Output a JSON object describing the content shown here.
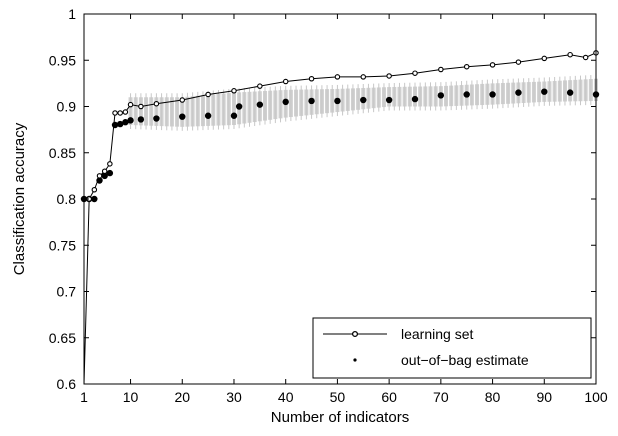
{
  "chart_data": {
    "type": "line",
    "title": "",
    "xlabel": "Number of indicators",
    "ylabel": "Classification accuracy",
    "xlim": [
      1,
      100
    ],
    "ylim": [
      0.6,
      1
    ],
    "xticks": [
      1,
      10,
      20,
      30,
      40,
      50,
      60,
      70,
      80,
      90,
      100
    ],
    "yticks": [
      0.6,
      0.65,
      0.7,
      0.75,
      0.8,
      0.85,
      0.9,
      0.95,
      1
    ],
    "grid": false,
    "legend_position": "bottom-right",
    "legend": [
      "learning set",
      "out−of−bag estimate"
    ],
    "colors": {
      "learning": "#000000",
      "oob": "#000000",
      "boxes": "#c8c8c8"
    },
    "series": [
      {
        "name": "learning set",
        "marker": "small-open-circle-line",
        "x": [
          1,
          2,
          3,
          4,
          5,
          6,
          7,
          8,
          9,
          10,
          12,
          15,
          20,
          25,
          30,
          35,
          40,
          45,
          50,
          55,
          60,
          65,
          70,
          75,
          80,
          85,
          90,
          95,
          98,
          100
        ],
        "values": [
          0.6,
          0.8,
          0.81,
          0.825,
          0.83,
          0.838,
          0.893,
          0.893,
          0.894,
          0.902,
          0.9,
          0.903,
          0.907,
          0.913,
          0.917,
          0.922,
          0.927,
          0.93,
          0.932,
          0.932,
          0.933,
          0.936,
          0.94,
          0.943,
          0.945,
          0.948,
          0.952,
          0.956,
          0.953,
          0.958
        ]
      },
      {
        "name": "out−of−bag estimate",
        "marker": "filled-dot",
        "x": [
          1,
          2,
          3,
          4,
          5,
          6,
          7,
          8,
          9,
          10,
          12,
          15,
          20,
          25,
          30,
          31,
          35,
          40,
          45,
          50,
          55,
          60,
          65,
          70,
          75,
          80,
          85,
          90,
          95,
          100
        ],
        "values": [
          0.8,
          0.8,
          0.8,
          0.82,
          0.825,
          0.828,
          0.88,
          0.881,
          0.883,
          0.885,
          0.886,
          0.887,
          0.889,
          0.89,
          0.89,
          0.9,
          0.902,
          0.905,
          0.906,
          0.906,
          0.907,
          0.907,
          0.908,
          0.912,
          0.913,
          0.913,
          0.915,
          0.916,
          0.915,
          0.913
        ]
      }
    ],
    "spread_bands": {
      "x": [
        10,
        20,
        30,
        40,
        50,
        60,
        70,
        80,
        90,
        100
      ],
      "low": [
        0.88,
        0.878,
        0.88,
        0.888,
        0.894,
        0.9,
        0.9,
        0.902,
        0.905,
        0.906
      ],
      "high": [
        0.91,
        0.91,
        0.915,
        0.918,
        0.919,
        0.921,
        0.922,
        0.925,
        0.927,
        0.93
      ]
    }
  }
}
